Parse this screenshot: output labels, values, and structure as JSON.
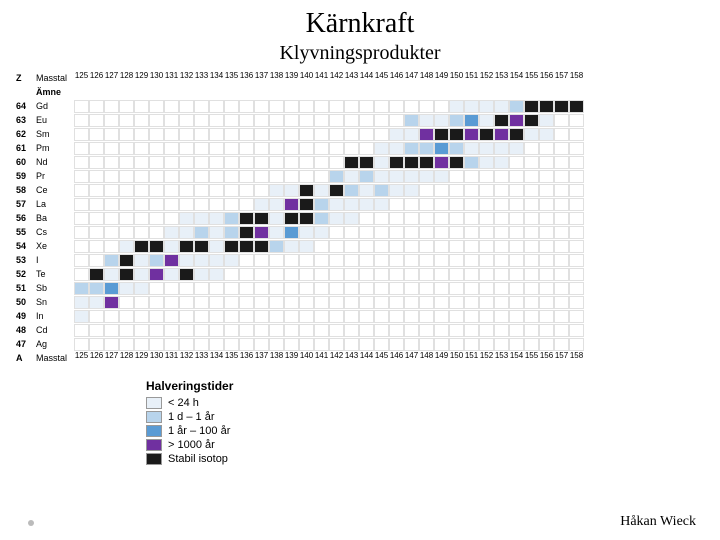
{
  "title": "Kärnkraft",
  "subtitle": "Klyvningsprodukter",
  "author": "Håkan Wieck",
  "colors": {
    "c0": "#e8f0f8",
    "c1": "#b8d4ec",
    "c2": "#5a9bd4",
    "c3": "#7030a0",
    "c4": "#1a1a1a",
    "grid": "#e0e0e0",
    "text": "#000000"
  },
  "legend": {
    "title": "Halveringstider",
    "items": [
      {
        "color": "c0",
        "label": "< 24 h"
      },
      {
        "color": "c1",
        "label": "1 d – 1 år"
      },
      {
        "color": "c2",
        "label": "1 år – 100 år"
      },
      {
        "color": "c3",
        "label": "> 1000 år"
      },
      {
        "color": "c4",
        "label": "Stabil isotop"
      }
    ]
  },
  "chart": {
    "z_header": "Z",
    "amne_label": "Ämne",
    "mass_label": "Masstal",
    "a_label": "A",
    "mass_numbers": [
      125,
      126,
      127,
      128,
      129,
      130,
      131,
      132,
      133,
      134,
      135,
      136,
      137,
      138,
      139,
      140,
      141,
      142,
      143,
      144,
      145,
      146,
      147,
      148,
      149,
      150,
      151,
      152,
      153,
      154,
      155,
      156,
      157,
      158
    ],
    "rows": [
      {
        "Z": 64,
        "el": "Gd",
        "cells": ".........................000014444"
      },
      {
        "Z": 63,
        "el": "Eu",
        "cells": "......................1001204340.."
      },
      {
        "Z": 62,
        "el": "Sm",
        "cells": ".....................00344343400.."
      },
      {
        "Z": 61,
        "el": "Pm",
        "cells": "....................0011210000...."
      },
      {
        "Z": 60,
        "el": "Nd",
        "cells": "..................44044434100....."
      },
      {
        "Z": 59,
        "el": "Pr",
        "cells": ".................10100000........."
      },
      {
        "Z": 58,
        "el": "Ce",
        "cells": ".............0040410100..........."
      },
      {
        "Z": 57,
        "el": "La",
        "cells": "............003410000............."
      },
      {
        "Z": 56,
        "el": "Ba",
        "cells": ".......000144044100..............."
      },
      {
        "Z": 55,
        "el": "Cs",
        "cells": "......00101430200................."
      },
      {
        "Z": 54,
        "el": "Xe",
        "cells": "...0440440444100.................."
      },
      {
        "Z": 53,
        "el": "I",
        "cells": "..140130000......................."
      },
      {
        "Z": 52,
        "el": "Te",
        "cells": ".404030400........................"
      },
      {
        "Z": 51,
        "el": "Sb",
        "cells": "11200............................."
      },
      {
        "Z": 50,
        "el": "Sn",
        "cells": "003..............................."
      },
      {
        "Z": 49,
        "el": "In",
        "cells": "0................................."
      },
      {
        "Z": 48,
        "el": "Cd",
        "cells": ".................................."
      },
      {
        "Z": 47,
        "el": "Ag",
        "cells": ".................................."
      }
    ]
  }
}
